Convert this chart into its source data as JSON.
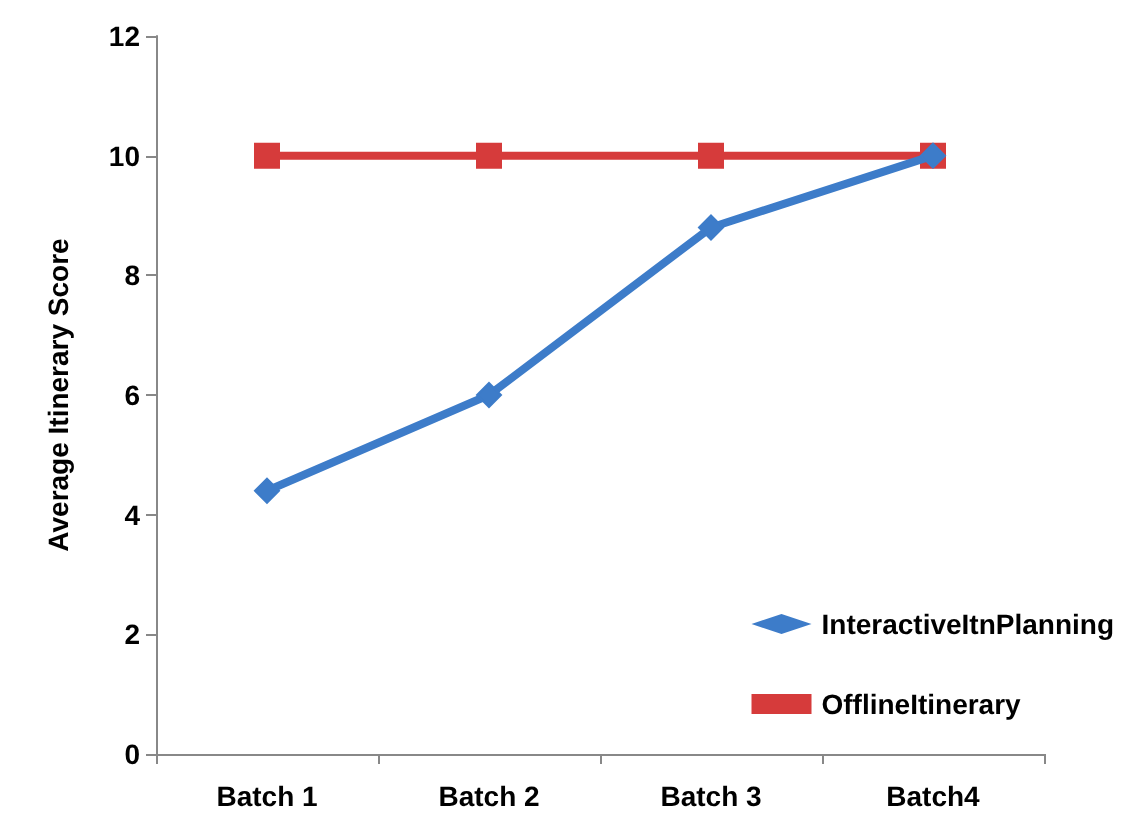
{
  "chart_data": {
    "type": "line",
    "ylabel": "Average Itinerary Score",
    "categories": [
      "Batch 1",
      "Batch 2",
      "Batch 3",
      "Batch4"
    ],
    "series": [
      {
        "name": "InteractiveItnPlanning",
        "color": "#3d7cc9",
        "marker": "diamond",
        "values": [
          4.4,
          6.0,
          8.8,
          10.0
        ]
      },
      {
        "name": "OfflineItinerary",
        "color": "#d63b3b",
        "marker": "square",
        "values": [
          10,
          10,
          10,
          10
        ]
      }
    ],
    "ylim": [
      0,
      12
    ],
    "yticks": [
      0,
      2,
      4,
      6,
      8,
      10,
      12
    ],
    "grid": false,
    "legend": "bottom right"
  }
}
